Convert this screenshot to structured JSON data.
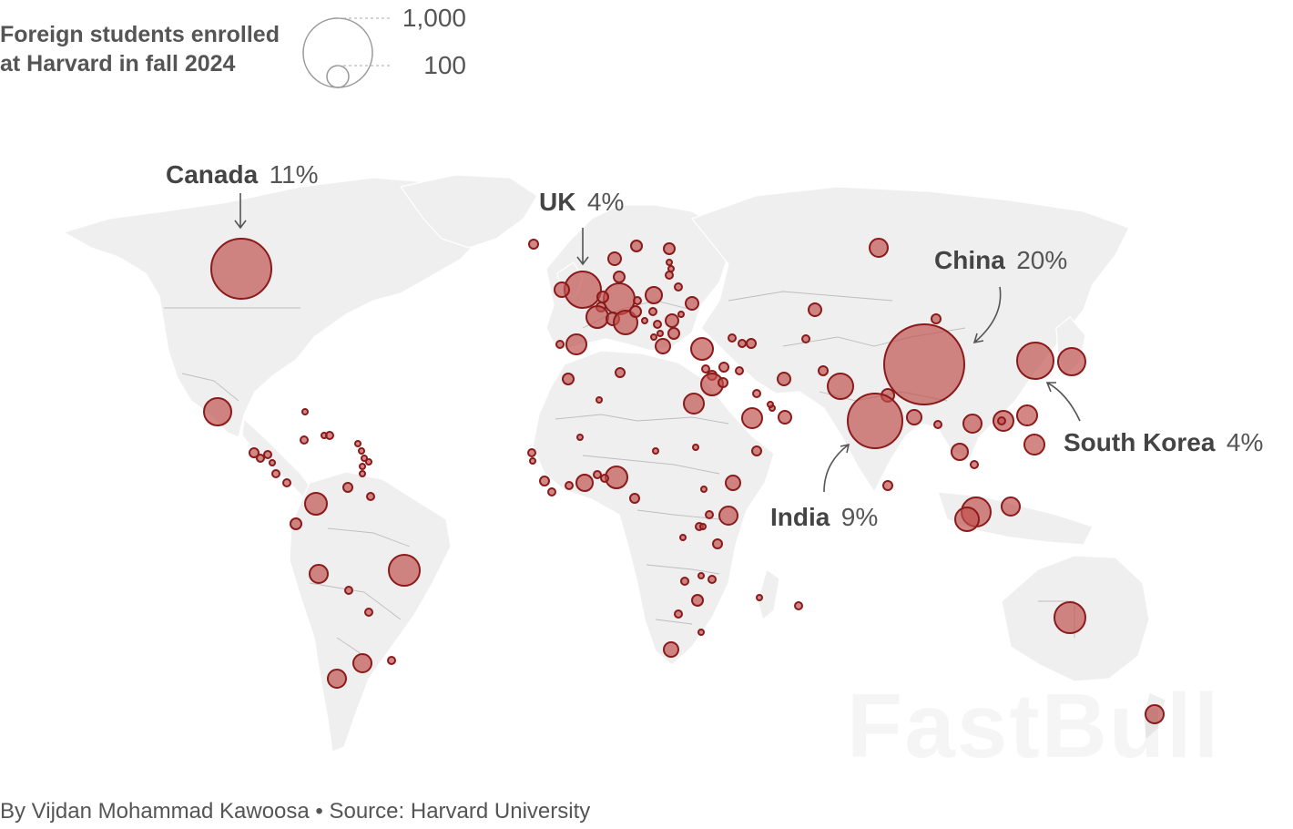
{
  "title": "Foreign students enrolled at Harvard in fall 2024",
  "legend": {
    "large_value": "1,000",
    "small_value": "100"
  },
  "callouts": [
    {
      "id": "canada",
      "name": "Canada",
      "pct": "11%"
    },
    {
      "id": "uk",
      "name": "UK",
      "pct": "4%"
    },
    {
      "id": "china",
      "name": "China",
      "pct": "20%"
    },
    {
      "id": "south-korea",
      "name": "South Korea",
      "pct": "4%"
    },
    {
      "id": "india",
      "name": "India",
      "pct": "9%"
    }
  ],
  "colors": {
    "bubble_fill": "#c0504d",
    "bubble_stroke": "#8b1a1a",
    "land": "#efefef",
    "border": "#bdbdbd"
  },
  "watermark": "FastBull",
  "byline": "By Vijdan Mohammad Kawoosa • Source: Harvard University"
}
